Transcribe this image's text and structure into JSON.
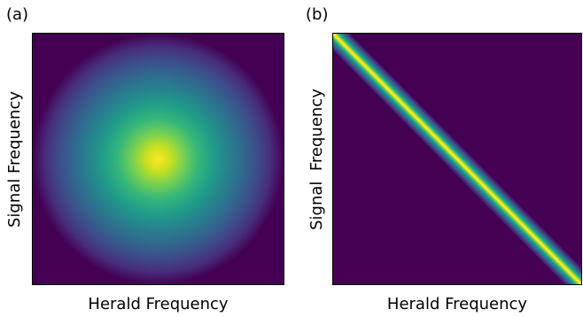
{
  "chart_data": [
    {
      "type": "heatmap",
      "panel": "(a)",
      "title": "",
      "xlabel": "Herald Frequency",
      "ylabel": "Signal Frequency",
      "pattern": "gaussian-spot",
      "peak": {
        "x": 0.5,
        "y": 0.5
      },
      "colormap": "viridis",
      "ticks": "none",
      "grid": false,
      "legend": "none"
    },
    {
      "type": "heatmap",
      "panel": "(b)",
      "title": "",
      "xlabel": "Herald Frequency",
      "ylabel": "Signal  Frequency",
      "pattern": "anti-diagonal-line",
      "line": {
        "from": [
          0,
          1
        ],
        "to": [
          1,
          0
        ]
      },
      "colormap": "viridis",
      "ticks": "none",
      "grid": false,
      "legend": "none"
    }
  ],
  "colors": {
    "low": "#440154",
    "mid": "#21918c",
    "high": "#fde725"
  }
}
